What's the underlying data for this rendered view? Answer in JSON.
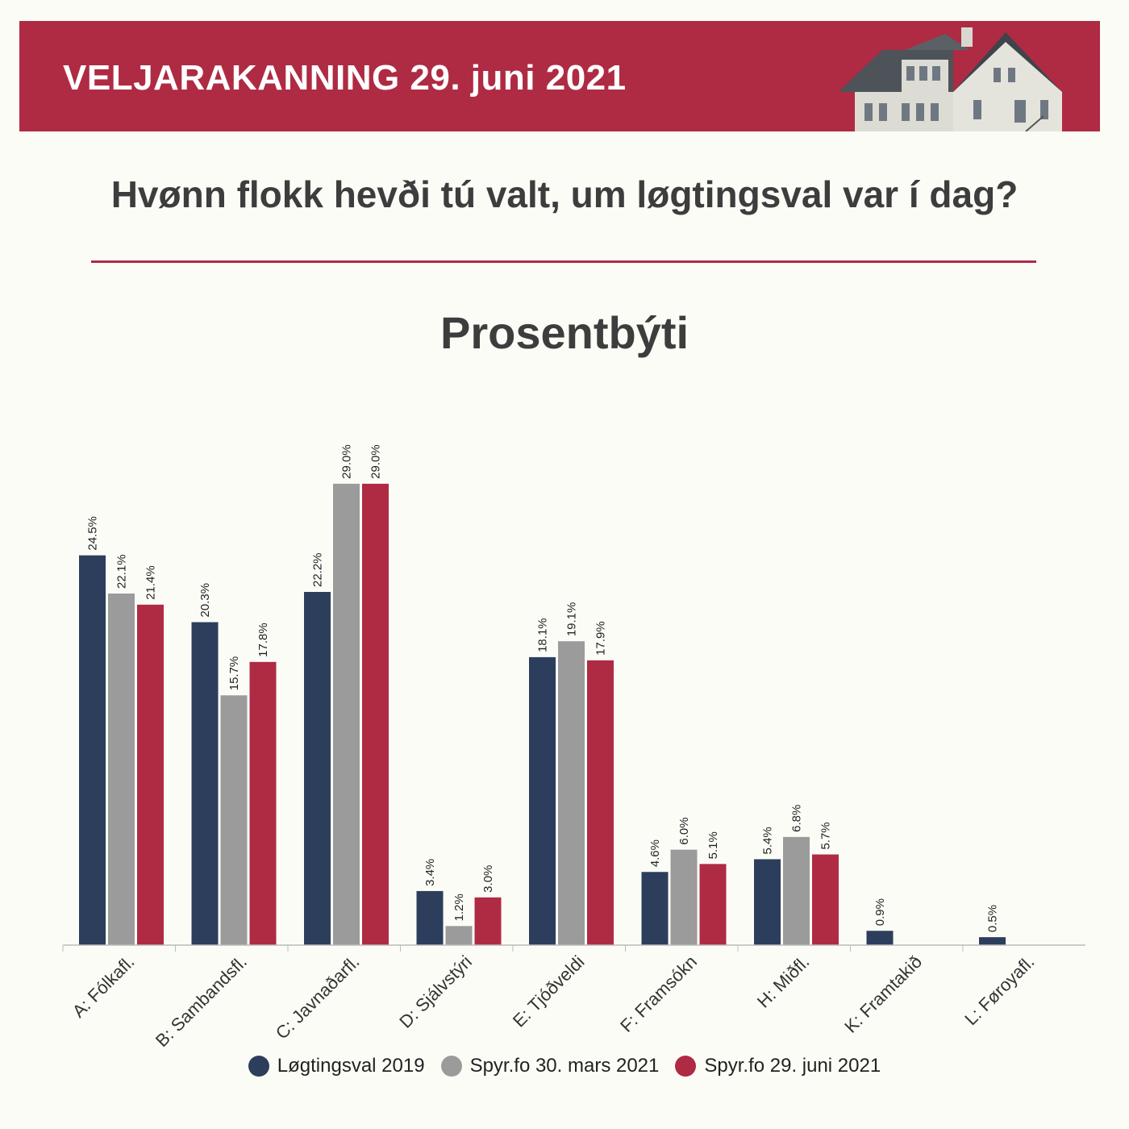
{
  "header": {
    "title": "VELJARAKANNING 29. juni 2021",
    "question": "Hvønn flokk hevði tú valt, um løgtingsval var í dag?",
    "subtitle": "Prosentbýti",
    "house_icon": "house-photo-icon"
  },
  "colors": {
    "banner": "#ae2b43",
    "series": [
      "#2c3e5c",
      "#9b9b9b",
      "#ae2b43"
    ]
  },
  "chart_data": {
    "type": "bar",
    "title": "Prosentbýti",
    "categories": [
      "A: Fólkafl.",
      "B: Sambandsfl.",
      "C: Javnaðarfl.",
      "D: Sjálvstýri",
      "E: Tjóðveldi",
      "F: Framsókn",
      "H: Miðfl.",
      "K: Framtakið",
      "L: Føroyafl."
    ],
    "series": [
      {
        "name": "Løgtingsval 2019",
        "values": [
          24.5,
          20.3,
          22.2,
          3.4,
          18.1,
          4.6,
          5.4,
          0.9,
          0.5
        ]
      },
      {
        "name": "Spyr.fo 30. mars 2021",
        "values": [
          22.1,
          15.7,
          29.0,
          1.2,
          19.1,
          6.0,
          6.8,
          null,
          null
        ]
      },
      {
        "name": "Spyr.fo 29. juni 2021",
        "values": [
          21.4,
          17.8,
          29.0,
          3.0,
          17.9,
          5.1,
          5.7,
          null,
          null
        ]
      }
    ],
    "value_suffix": "%",
    "ylim": [
      0,
      29.5
    ],
    "grid": false,
    "legend": "bottom"
  }
}
